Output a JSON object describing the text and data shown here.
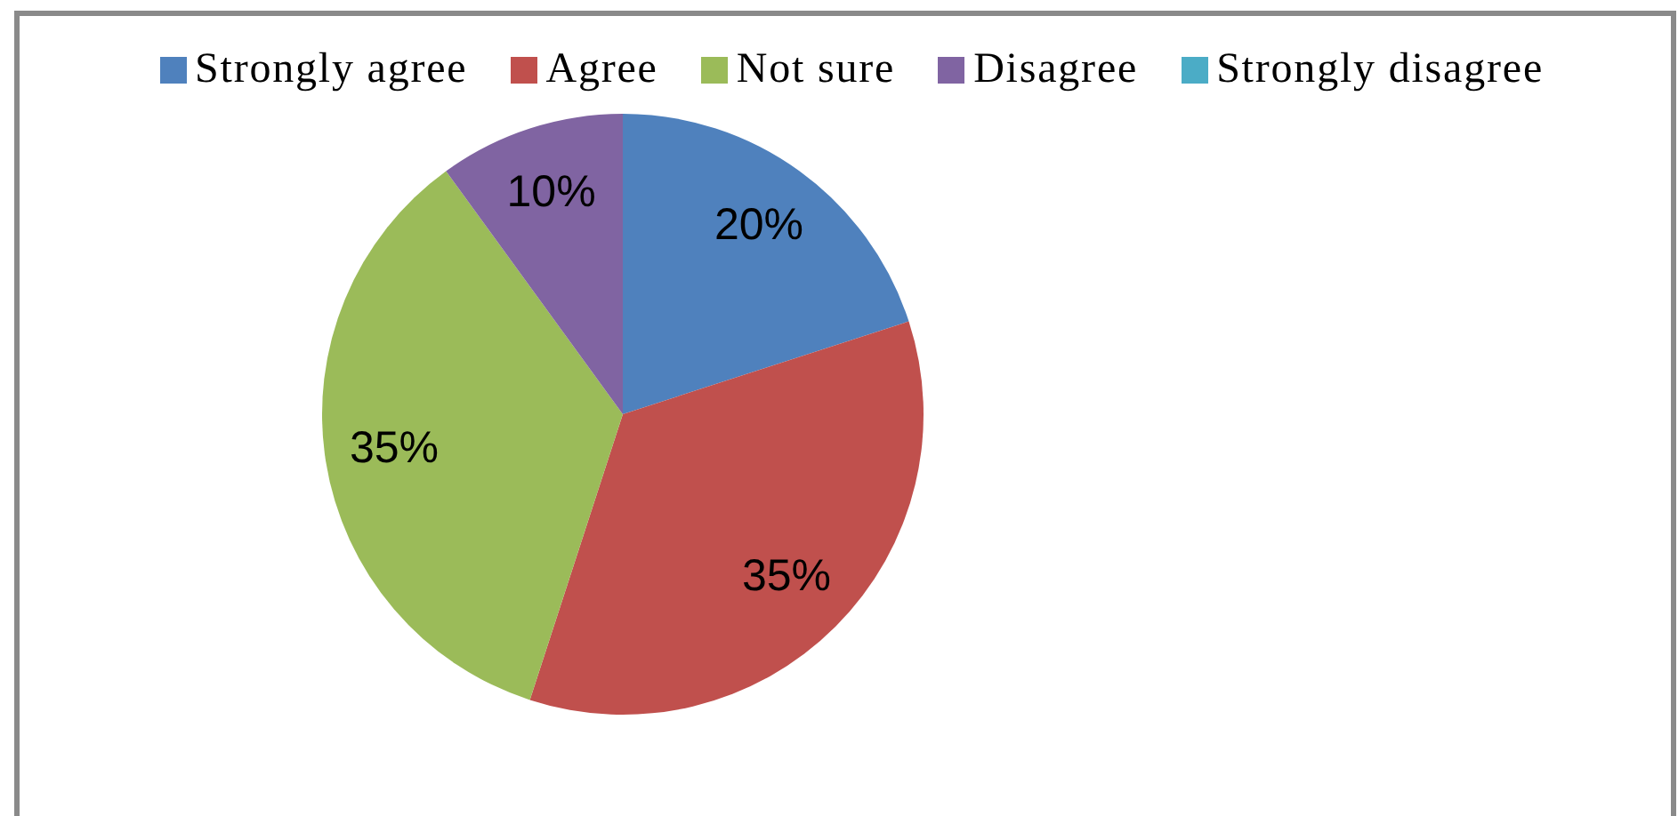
{
  "chart_data": {
    "type": "pie",
    "categories": [
      "Strongly agree",
      "Agree",
      "Not sure",
      "Disagree",
      "Strongly disagree"
    ],
    "values": [
      20,
      35,
      35,
      10,
      0
    ],
    "colors": [
      "#4f81bd",
      "#c0504d",
      "#9bbb59",
      "#8064a2",
      "#4bacc6"
    ],
    "value_labels": [
      "20%",
      "35%",
      "35%",
      "10%",
      null
    ],
    "legend": "top"
  }
}
